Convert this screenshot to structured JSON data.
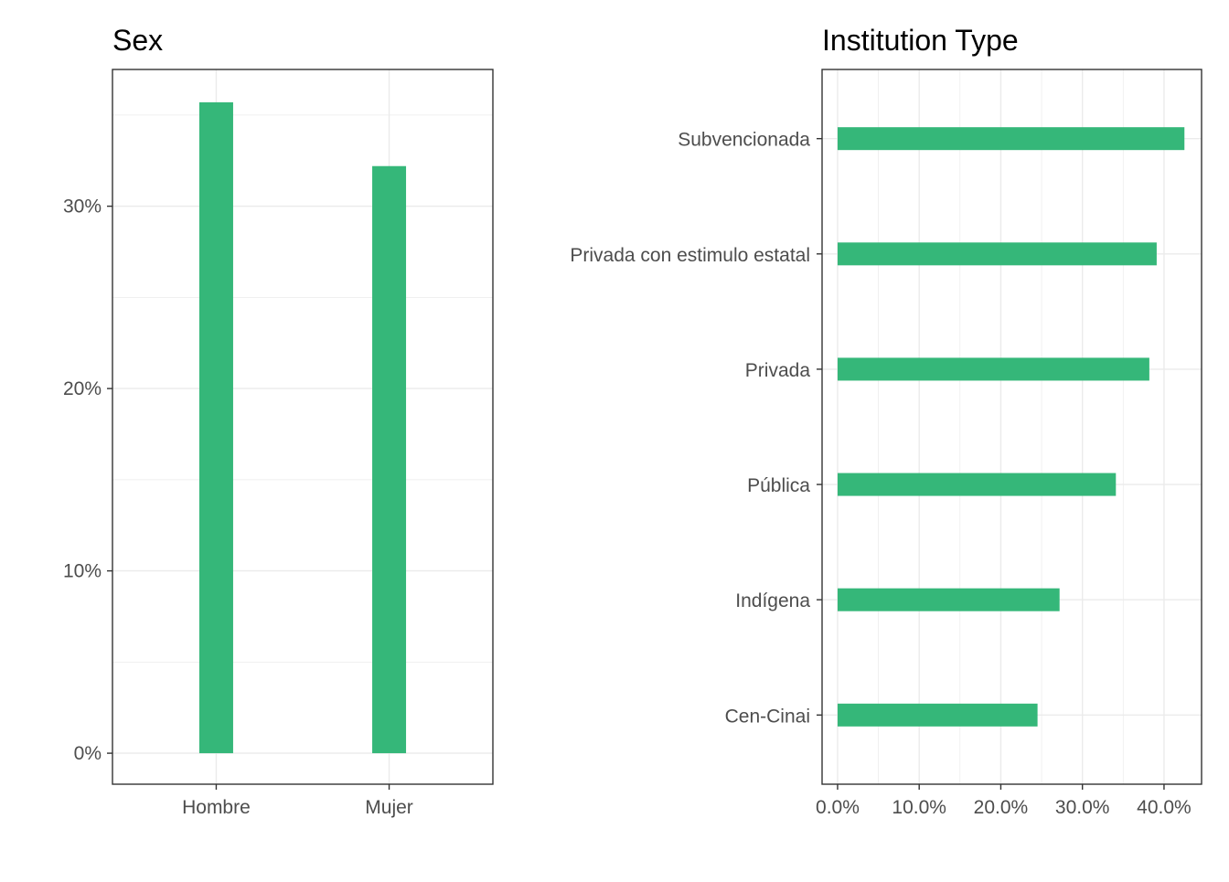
{
  "chart_data": [
    {
      "type": "bar",
      "orientation": "vertical",
      "title": "Sex",
      "xlabel": "",
      "ylabel": "",
      "categories": [
        "Hombre",
        "Mujer"
      ],
      "values": [
        0.357,
        0.322
      ],
      "ylim": [
        -0.017,
        0.375
      ],
      "yticks": [
        0,
        0.1,
        0.2,
        0.3
      ],
      "ytick_labels": [
        "0%",
        "10%",
        "20%",
        "30%"
      ],
      "grid": true,
      "bar_color": "#35B779"
    },
    {
      "type": "bar",
      "orientation": "horizontal",
      "title": "Institution Type",
      "xlabel": "",
      "ylabel": "",
      "categories": [
        "Cen-Cinai",
        "Indígena",
        "Pública",
        "Privada",
        "Privada con estimulo estatal",
        "Subvencionada"
      ],
      "values": [
        0.245,
        0.272,
        0.341,
        0.382,
        0.391,
        0.425
      ],
      "xlim": [
        -0.019,
        0.446
      ],
      "xticks": [
        0,
        0.1,
        0.2,
        0.3,
        0.4
      ],
      "xtick_labels": [
        "0.0%",
        "10.0%",
        "20.0%",
        "30.0%",
        "40.0%"
      ],
      "grid": true,
      "bar_color": "#35B779"
    }
  ]
}
